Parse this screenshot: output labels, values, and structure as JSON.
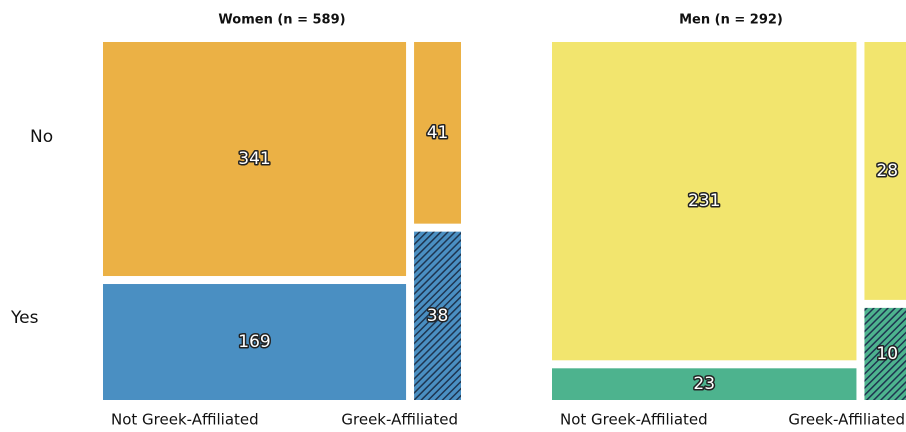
{
  "chart_data": [
    {
      "type": "mosaic",
      "title": "Women (n = 589)",
      "categories": [
        "Not Greek-Affiliated",
        "Greek-Affiliated"
      ],
      "series": [
        {
          "name": "No",
          "color": "#ebb145",
          "values": [
            341,
            41
          ],
          "hatched": [
            false,
            false
          ]
        },
        {
          "name": "Yes",
          "color": "#4a8fc2",
          "values": [
            169,
            38
          ],
          "hatched": [
            false,
            true
          ]
        }
      ]
    },
    {
      "type": "mosaic",
      "title": "Men (n = 292)",
      "categories": [
        "Not Greek-Affiliated",
        "Greek-Affiliated"
      ],
      "series": [
        {
          "name": "No",
          "color": "#f2e56e",
          "values": [
            231,
            28
          ],
          "hatched": [
            false,
            false
          ]
        },
        {
          "name": "Yes",
          "color": "#4db38e",
          "values": [
            23,
            10
          ],
          "hatched": [
            false,
            true
          ]
        }
      ]
    }
  ]
}
